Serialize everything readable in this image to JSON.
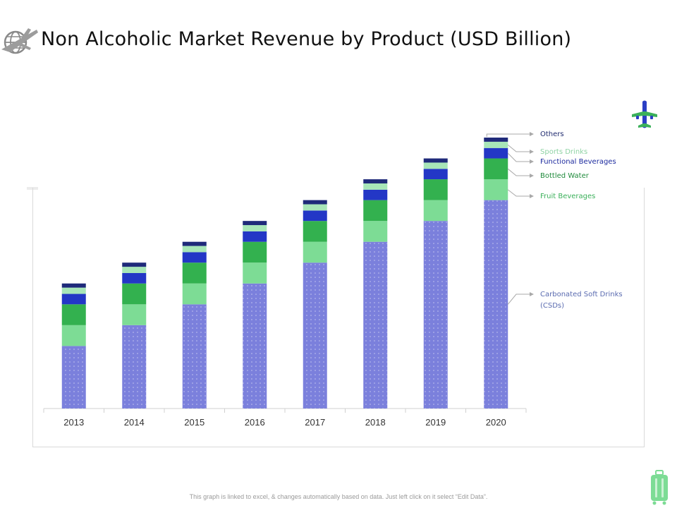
{
  "page": {
    "title": "Non Alcoholic Market Revenue by Product (USD Billion)",
    "footer_note": "This graph is linked to excel, & changes automatically based on data. Just left click on it select “Edit Data”.",
    "icons": {
      "logo": "globe-plane-icon",
      "plane": "airplane-icon",
      "luggage": "suitcase-icon"
    }
  },
  "chart_data": {
    "type": "bar",
    "stacked": true,
    "title": "Non Alcoholic Market Revenue by Product (USD Billion)",
    "xlabel": "",
    "ylabel": "",
    "ylim": [
      0,
      6.5
    ],
    "grid": false,
    "legend_placement": "right",
    "categories": [
      "2013",
      "2014",
      "2015",
      "2016",
      "2017",
      "2018",
      "2019",
      "2020"
    ],
    "series": [
      {
        "name": "Carbonated Soft Drinks (CSDs)",
        "label_lines": [
          "Carbonated Soft Drinks",
          "(CSDs)"
        ],
        "color": "#7b80dc",
        "pattern": true,
        "label_color": "#5a6bb0",
        "values": [
          1.5,
          2.0,
          2.5,
          3.0,
          3.5,
          4.0,
          4.5,
          5.0
        ]
      },
      {
        "name": "Fruit Beverages",
        "label_lines": [
          "Fruit Beverages"
        ],
        "color": "#7ddc95",
        "pattern": false,
        "label_color": "#3bb05a",
        "values": [
          0.5,
          0.5,
          0.5,
          0.5,
          0.5,
          0.5,
          0.5,
          0.5
        ]
      },
      {
        "name": "Bottled Water",
        "label_lines": [
          "Bottled Water"
        ],
        "color": "#33b14f",
        "pattern": false,
        "label_color": "#1f8a3b",
        "values": [
          0.5,
          0.5,
          0.5,
          0.5,
          0.5,
          0.5,
          0.5,
          0.5
        ]
      },
      {
        "name": "Functional Beverages",
        "label_lines": [
          "Functional Beverages"
        ],
        "color": "#2337c6",
        "pattern": false,
        "label_color": "#1c2a9e",
        "values": [
          0.25,
          0.25,
          0.25,
          0.25,
          0.25,
          0.25,
          0.25,
          0.25
        ]
      },
      {
        "name": "Sports Drinks",
        "label_lines": [
          "Sports Drinks"
        ],
        "color": "#a8e6b8",
        "pattern": false,
        "label_color": "#8fd3a4",
        "values": [
          0.15,
          0.15,
          0.15,
          0.15,
          0.15,
          0.15,
          0.15,
          0.15
        ]
      },
      {
        "name": "Others",
        "label_lines": [
          "Others"
        ],
        "color": "#1f2a7a",
        "pattern": false,
        "label_color": "#1f2a6e",
        "values": [
          0.1,
          0.1,
          0.1,
          0.1,
          0.1,
          0.1,
          0.1,
          0.1
        ]
      }
    ]
  }
}
